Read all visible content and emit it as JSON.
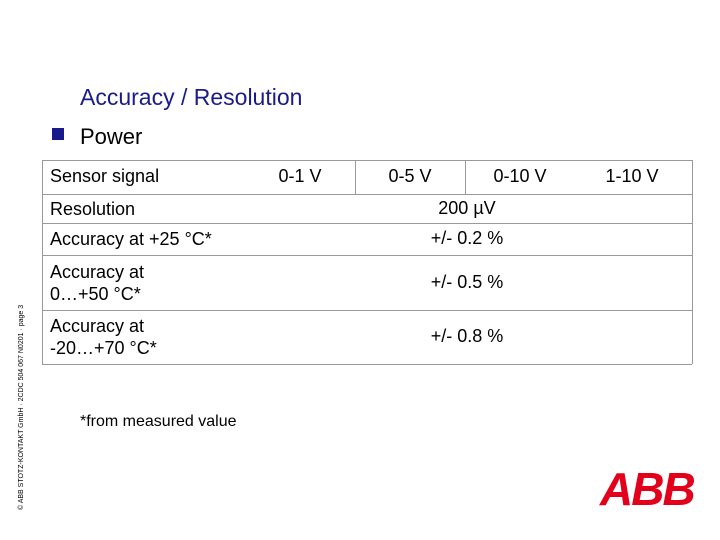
{
  "header": {
    "title": "Accuracy / Resolution",
    "bullet": "Power"
  },
  "table": {
    "header": [
      "Sensor signal",
      "0-1 V",
      "0-5 V",
      "0-10 V",
      "1-10 V"
    ],
    "rows": [
      {
        "label": [
          "Resolution"
        ],
        "value": "200 µV"
      },
      {
        "label": [
          "Accuracy at +25 °C*"
        ],
        "value": "+/- 0.2 %"
      },
      {
        "label": [
          "Accuracy at",
          "0…+50 °C*"
        ],
        "value": "+/- 0.5 %"
      },
      {
        "label": [
          "Accuracy at",
          "-20…+70 °C*"
        ],
        "value": "+/- 0.8 %"
      }
    ]
  },
  "footnote": "*from measured value",
  "side_note": "© ABB STOTZ-KONTAKT GmbH · 2CDC 504 067 N0201 · page 3",
  "logo": "ABB"
}
